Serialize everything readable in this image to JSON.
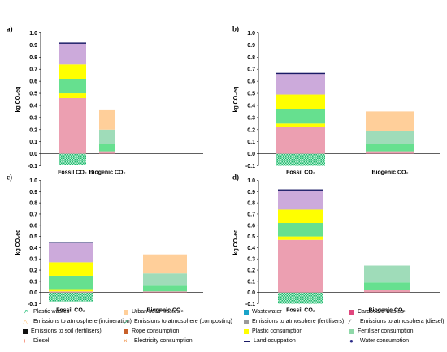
{
  "chart_data": [
    {
      "type": "bar",
      "panel": "a)",
      "ylabel": "kg CO₂eq",
      "ylim": [
        -0.1,
        1.0
      ],
      "yticks": [
        "-0.1",
        "0.0",
        "0.1",
        "0.2",
        "0.3",
        "0.4",
        "0.5",
        "0.6",
        "0.7",
        "0.8",
        "0.9",
        "1.0"
      ],
      "categories": [
        "Fossil CO₂",
        "Biogenic CO₂"
      ],
      "stacks": [
        [
          {
            "series": "Plastic wastes",
            "value": -0.09
          },
          {
            "series": "Cardboard wastes",
            "value": 0.46
          },
          {
            "series": "Plastic consumption",
            "value": 0.04
          },
          {
            "series": "Fertiliser consumption",
            "value": 0.12
          },
          {
            "series": "Plastic consumption",
            "value": 0.12
          },
          {
            "series": "Urban solid wastes (violet)",
            "value": 0.17
          },
          {
            "series": "Land occupation",
            "value": 0.01
          }
        ],
        [
          {
            "series": "Cardboard wastes",
            "value": 0.02
          },
          {
            "series": "Fertiliser consumption",
            "value": 0.06
          },
          {
            "series": "Fertiliser consumption (light)",
            "value": 0.12
          },
          {
            "series": "Urban solid wastes",
            "value": 0.16
          }
        ]
      ]
    },
    {
      "type": "bar",
      "panel": "b)",
      "ylabel": "kg CO₂eq",
      "ylim": [
        -0.1,
        1.0
      ],
      "yticks": [
        "-0.1",
        "0.0",
        "0.1",
        "0.2",
        "0.3",
        "0.4",
        "0.5",
        "0.6",
        "0.7",
        "0.8",
        "0.9",
        "1.0"
      ],
      "categories": [
        "Fossil CO₂",
        "Biogenic CO₂"
      ],
      "stacks": [
        [
          {
            "series": "Plastic wastes",
            "value": -0.1
          },
          {
            "series": "Cardboard wastes",
            "value": 0.22
          },
          {
            "series": "Plastic consumption",
            "value": 0.03
          },
          {
            "series": "Fertiliser consumption",
            "value": 0.12
          },
          {
            "series": "Plastic consumption",
            "value": 0.12
          },
          {
            "series": "Urban solid wastes (violet)",
            "value": 0.17
          },
          {
            "series": "Land occupation",
            "value": 0.01
          }
        ],
        [
          {
            "series": "Cardboard wastes",
            "value": 0.02
          },
          {
            "series": "Fertiliser consumption",
            "value": 0.06
          },
          {
            "series": "Fertiliser consumption (light)",
            "value": 0.11
          },
          {
            "series": "Urban solid wastes",
            "value": 0.16
          }
        ]
      ]
    },
    {
      "type": "bar",
      "panel": "c)",
      "ylabel": "kg CO₂eq",
      "ylim": [
        -0.1,
        1.0
      ],
      "yticks": [
        "-0.1",
        "0.0",
        "0.1",
        "0.2",
        "0.3",
        "0.4",
        "0.5",
        "0.6",
        "0.7",
        "0.8",
        "0.9",
        "1.0"
      ],
      "categories": [
        "Fossil CO₂",
        "Biogenic CO₂"
      ],
      "stacks": [
        [
          {
            "series": "Plastic wastes",
            "value": -0.08
          },
          {
            "series": "Cardboard wastes",
            "value": 0.01
          },
          {
            "series": "Plastic consumption",
            "value": 0.02
          },
          {
            "series": "Fertiliser consumption",
            "value": 0.12
          },
          {
            "series": "Plastic consumption",
            "value": 0.12
          },
          {
            "series": "Urban solid wastes (violet)",
            "value": 0.17
          },
          {
            "series": "Land occupation",
            "value": 0.01
          }
        ],
        [
          {
            "series": "Cardboard wastes",
            "value": 0.01
          },
          {
            "series": "Fertiliser consumption",
            "value": 0.05
          },
          {
            "series": "Fertiliser consumption (light)",
            "value": 0.11
          },
          {
            "series": "Urban solid wastes",
            "value": 0.17
          }
        ]
      ]
    },
    {
      "type": "bar",
      "panel": "d)",
      "ylabel": "kg CO₂eq",
      "ylim": [
        -0.1,
        1.0
      ],
      "yticks": [
        "-0.1",
        "0.0",
        "0.1",
        "0.2",
        "0.3",
        "0.4",
        "0.5",
        "0.6",
        "0.7",
        "0.8",
        "0.9",
        "1.0"
      ],
      "categories": [
        "Fossil CO₂",
        "Biogenic CO₂"
      ],
      "stacks": [
        [
          {
            "series": "Plastic wastes",
            "value": -0.1
          },
          {
            "series": "Cardboard wastes",
            "value": 0.47
          },
          {
            "series": "Plastic consumption",
            "value": 0.03
          },
          {
            "series": "Fertiliser consumption",
            "value": 0.12
          },
          {
            "series": "Plastic consumption",
            "value": 0.12
          },
          {
            "series": "Urban solid wastes (violet)",
            "value": 0.17
          },
          {
            "series": "Land occupation",
            "value": 0.01
          }
        ],
        [
          {
            "series": "Cardboard wastes",
            "value": 0.02
          },
          {
            "series": "Fertiliser consumption",
            "value": 0.07
          },
          {
            "series": "Fertiliser consumption (light)",
            "value": 0.15
          }
        ]
      ]
    }
  ],
  "series_colors": {
    "Plastic wastes": "#3fd48a",
    "Cardboard wastes": "#ec9fb1",
    "Plastic consumption": "#ffff00",
    "Fertiliser consumption": "#66e08f",
    "Fertiliser consumption (light)": "#9fdcb9",
    "Urban solid wastes": "#ffcf9a",
    "Urban solid wastes (violet)": "#ccaadb",
    "Land occupation": "#1a1a66"
  },
  "legend": [
    {
      "label": "Plastic wastes",
      "color": "#2ec27e",
      "icon": "arrow-marker"
    },
    {
      "label": "Urban solid wastes",
      "color": "#ffcf9a",
      "icon": "square"
    },
    {
      "label": "Wastewater",
      "color": "#19a3c8",
      "icon": "square"
    },
    {
      "label": "Cardboard wastes",
      "color": "#e0467d",
      "icon": "square"
    },
    {
      "label": "Emissions to atmosphere (incineration)",
      "color": "#ffb050",
      "icon": "triangle-marker"
    },
    {
      "label": "Emissions to atmosphere (composting)",
      "color": "#2ec27e",
      "icon": "arrow-marker"
    },
    {
      "label": "Emissions to atmosphere (fertilisers)",
      "color": "#999999",
      "icon": "square"
    },
    {
      "label": "Emissions to atmosphera (diesel)",
      "color": "#333333",
      "icon": "slash-marker"
    },
    {
      "label": "Emissions to soil (fertilisers)",
      "color": "#111111",
      "icon": "square"
    },
    {
      "label": "Rope consumption",
      "color": "#c8602a",
      "icon": "square"
    },
    {
      "label": "Plastic consumption",
      "color": "#ffff00",
      "icon": "square"
    },
    {
      "label": "Fertiliser consumption",
      "color": "#8fd8a8",
      "icon": "square"
    },
    {
      "label": "Diesel",
      "color": "#f05a3a",
      "icon": "plus-marker"
    },
    {
      "label": "Electricity consumption",
      "color": "#f08a3a",
      "icon": "x-marker"
    },
    {
      "label": "Land ocuppation",
      "color": "#1a1a66",
      "icon": "line"
    },
    {
      "label": "Water consumption",
      "color": "#2a2a88",
      "icon": "dot-marker"
    }
  ]
}
